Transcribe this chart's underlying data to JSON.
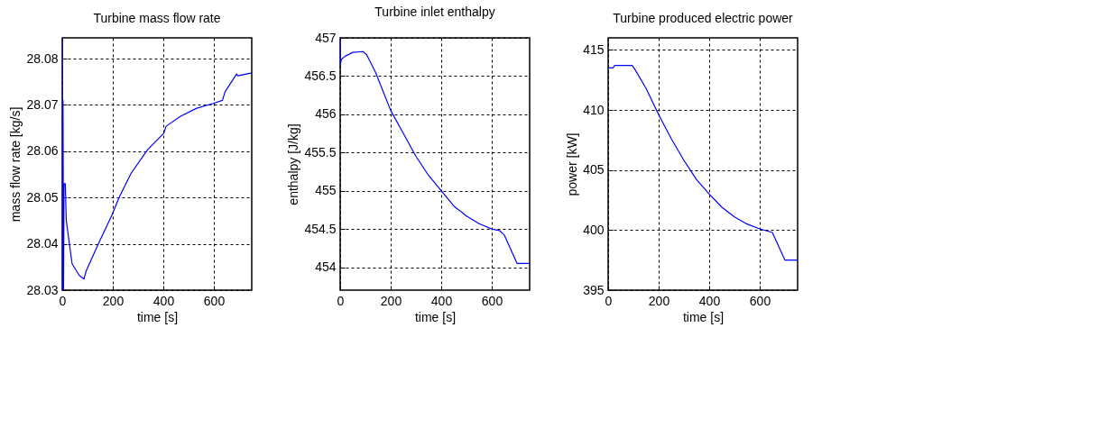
{
  "chart_data": [
    {
      "type": "line",
      "title": "Turbine mass flow rate",
      "xlabel": "time [s]",
      "ylabel": "mass flow rate [kg/s]",
      "xlim": [
        0,
        750
      ],
      "ylim": [
        28.03,
        28.0845
      ],
      "xticks": [
        0,
        200,
        400,
        600
      ],
      "yticks": [
        28.03,
        28.04,
        28.05,
        28.06,
        28.07,
        28.08
      ],
      "grid": true,
      "series": [
        {
          "color": "#0000ff",
          "x": [
            0,
            1,
            3,
            5,
            7,
            12,
            16,
            39,
            67,
            86,
            95,
            141,
            195,
            225,
            272,
            337,
            402,
            411,
            467,
            532,
            595,
            634,
            644,
            690,
            695,
            746,
            750
          ],
          "values": [
            28.0845,
            28.03,
            28.071,
            28.03,
            28.053,
            28.053,
            28.045,
            28.0357,
            28.0332,
            28.0324,
            28.0342,
            28.0398,
            28.046,
            28.05,
            28.0552,
            28.0603,
            28.0639,
            28.0654,
            28.0675,
            28.0693,
            28.0703,
            28.071,
            28.0728,
            28.0767,
            28.0763,
            28.0769,
            28.077
          ]
        }
      ]
    },
    {
      "type": "line",
      "title": "Turbine inlet enthalpy",
      "xlabel": "time [s]",
      "ylabel": "enthalpy [J/kg]",
      "xlim": [
        0,
        750
      ],
      "ylim": [
        453.7,
        457
      ],
      "xticks": [
        0,
        200,
        400,
        600
      ],
      "yticks": [
        454,
        454.5,
        455,
        455.5,
        456,
        456.5,
        457
      ],
      "grid": true,
      "series": [
        {
          "color": "#0000ff",
          "x": [
            0,
            1,
            5,
            20,
            50,
            90,
            105,
            140,
            200,
            250,
            300,
            350,
            400,
            450,
            500,
            550,
            600,
            630,
            650,
            700,
            750
          ],
          "values": [
            457,
            456.65,
            456.72,
            456.76,
            456.81,
            456.82,
            456.78,
            456.55,
            456.05,
            455.75,
            455.45,
            455.2,
            455.0,
            454.8,
            454.67,
            454.57,
            454.5,
            454.48,
            454.42,
            454.05,
            454.05
          ]
        }
      ]
    },
    {
      "type": "line",
      "title": "Turbine produced electric power",
      "xlabel": "time [s]",
      "ylabel": "power [kW]",
      "xlim": [
        0,
        750
      ],
      "ylim": [
        395,
        416
      ],
      "xticks": [
        0,
        200,
        400,
        600
      ],
      "yticks": [
        395,
        400,
        405,
        410,
        415
      ],
      "grid": true,
      "series": [
        {
          "color": "#0000ff",
          "x": [
            0,
            20,
            25,
            95,
            105,
            150,
            200,
            250,
            300,
            350,
            400,
            450,
            500,
            550,
            600,
            650,
            700,
            750
          ],
          "values": [
            413.5,
            413.5,
            413.7,
            413.7,
            413.4,
            411.8,
            409.6,
            407.6,
            405.8,
            404.2,
            403,
            401.9,
            401.1,
            400.5,
            400.1,
            399.8,
            397.5,
            397.5
          ]
        }
      ]
    }
  ]
}
